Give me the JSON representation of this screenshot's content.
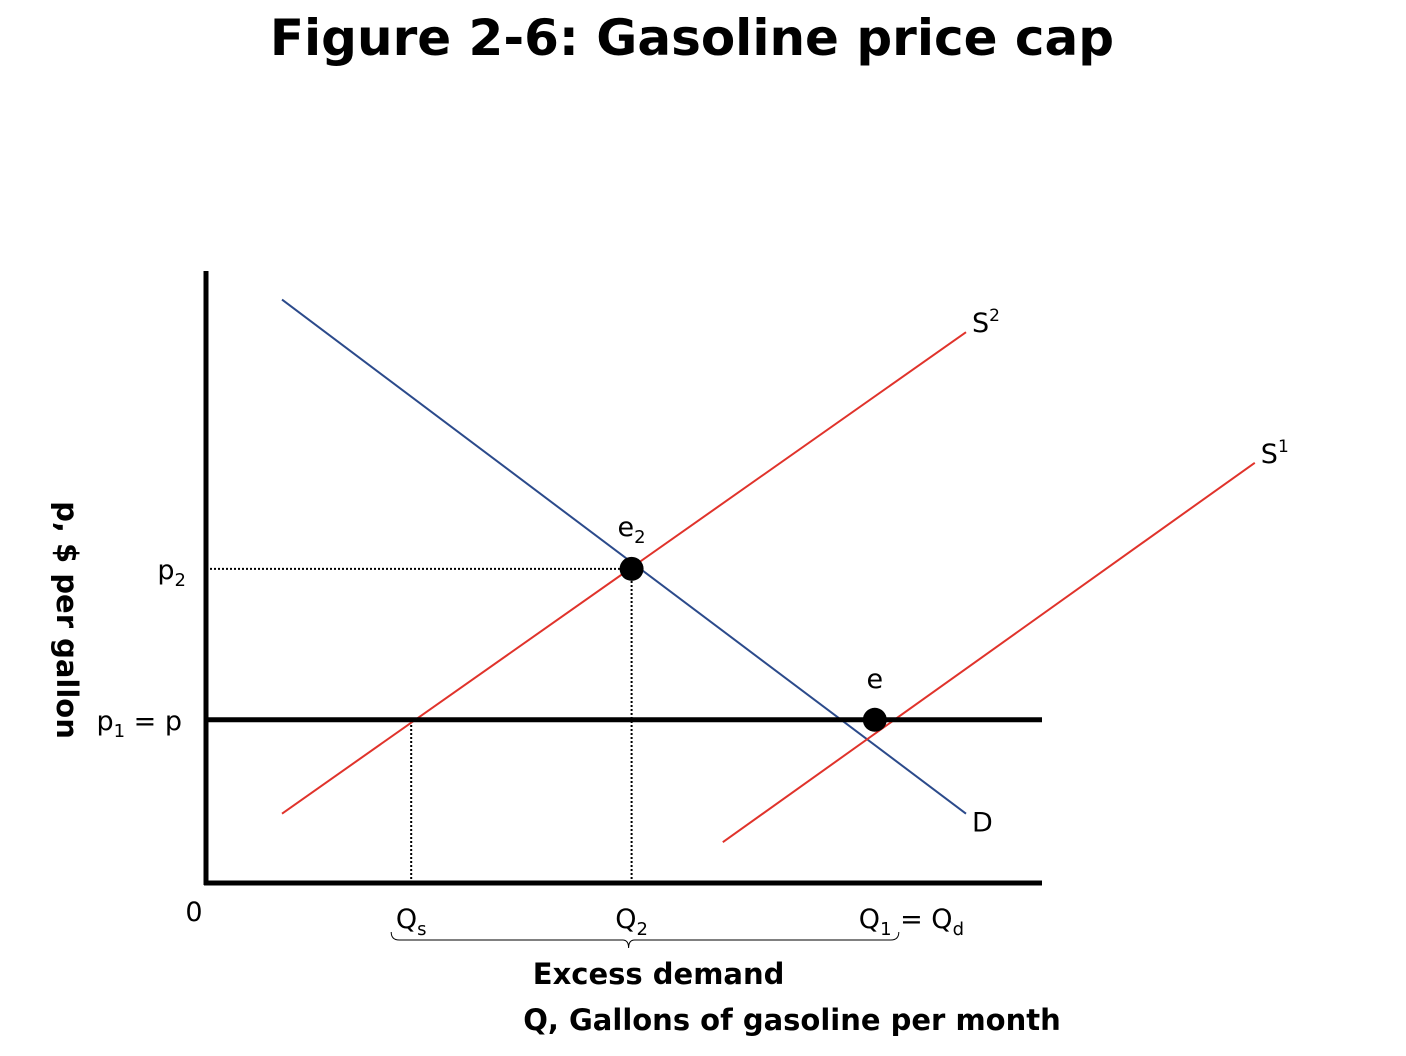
{
  "chart_data": {
    "type": "line",
    "title": "Figure 2-6: Gasoline price cap",
    "xlabel": "Q, Gallons of gasoline per month",
    "ylabel": "p, $ per gallon",
    "origin_label": "0",
    "grid": false,
    "series": [
      {
        "name": "D",
        "points": [
          [
            1.0,
            14.3
          ],
          [
            10.0,
            1.7
          ]
        ],
        "color": "#2b4a8b"
      },
      {
        "name": "S",
        "sup": "1",
        "points": [
          [
            6.8,
            1.0
          ],
          [
            13.8,
            10.3
          ]
        ],
        "color": "#e0332b"
      },
      {
        "name": "S",
        "sup": "2",
        "points": [
          [
            1.0,
            1.7
          ],
          [
            10.0,
            13.5
          ]
        ],
        "color": "#e0332b"
      }
    ],
    "price_cap": {
      "y": 4.0,
      "x_from": 0,
      "x_to": 11.0,
      "label_main": "p",
      "label_sub": "1",
      "label_rest": " = p"
    },
    "points": [
      {
        "name": "e",
        "sub": "2",
        "x": 5.6,
        "y": 7.7
      },
      {
        "name": "e",
        "sub": "",
        "x": 8.8,
        "y": 4.0
      }
    ],
    "y_marks": [
      {
        "label_main": "p",
        "label_sub": "2",
        "y": 7.7
      }
    ],
    "x_marks": [
      {
        "label_main": "Q",
        "label_sub": "s",
        "x": 2.7
      },
      {
        "label_main": "Q",
        "label_sub": "2",
        "x": 5.6
      },
      {
        "label_main": "Q",
        "label_sub": "1",
        "label_rest": " = Q",
        "label_sub2": "d",
        "x": 8.8
      }
    ],
    "brace": {
      "x_from": 2.7,
      "x_to": 8.8,
      "label": "Excess demand"
    },
    "guides": [
      {
        "from": [
          0,
          7.7
        ],
        "to": [
          5.6,
          7.7
        ]
      },
      {
        "from": [
          5.6,
          0
        ],
        "to": [
          5.6,
          7.7
        ]
      },
      {
        "from": [
          2.7,
          0
        ],
        "to": [
          2.7,
          4.0
        ]
      }
    ],
    "xlim": [
      0,
      12.5
    ],
    "ylim": [
      0,
      15
    ]
  }
}
